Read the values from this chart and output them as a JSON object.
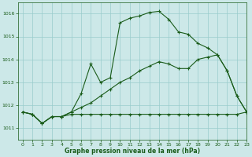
{
  "background_color": "#cce8e8",
  "grid_color": "#99cccc",
  "line_color": "#1a5c1a",
  "title": "Graphe pression niveau de la mer (hPa)",
  "xlim": [
    -0.5,
    23
  ],
  "ylim": [
    1010.5,
    1016.5
  ],
  "yticks": [
    1011,
    1012,
    1013,
    1014,
    1015,
    1016
  ],
  "xticks": [
    0,
    1,
    2,
    3,
    4,
    5,
    6,
    7,
    8,
    9,
    10,
    11,
    12,
    13,
    14,
    15,
    16,
    17,
    18,
    19,
    20,
    21,
    22,
    23
  ],
  "line1_x": [
    0,
    1,
    2,
    3,
    4,
    5,
    6,
    7,
    8,
    9,
    10,
    11,
    12,
    13,
    14,
    15,
    16,
    17,
    18,
    19,
    20,
    21,
    22,
    23
  ],
  "line1_y": [
    1011.7,
    1011.6,
    1011.2,
    1011.5,
    1011.5,
    1011.7,
    1012.5,
    1013.8,
    1013.0,
    1013.2,
    1015.6,
    1015.8,
    1015.9,
    1016.05,
    1016.1,
    1015.75,
    1015.2,
    1015.1,
    1014.7,
    1014.5,
    1014.2,
    1013.5,
    1012.4,
    1011.7
  ],
  "line2_x": [
    0,
    1,
    2,
    3,
    4,
    5,
    6,
    7,
    8,
    9,
    10,
    11,
    12,
    13,
    14,
    15,
    16,
    17,
    18,
    19,
    20,
    21,
    22,
    23
  ],
  "line2_y": [
    1011.7,
    1011.6,
    1011.2,
    1011.5,
    1011.5,
    1011.6,
    1011.6,
    1011.6,
    1011.6,
    1011.6,
    1011.6,
    1011.6,
    1011.6,
    1011.6,
    1011.6,
    1011.6,
    1011.6,
    1011.6,
    1011.6,
    1011.6,
    1011.6,
    1011.6,
    1011.6,
    1011.7
  ],
  "line3_x": [
    0,
    1,
    2,
    3,
    4,
    5,
    6,
    7,
    8,
    9,
    10,
    11,
    12,
    13,
    14,
    15,
    16,
    17,
    18,
    19,
    20,
    21,
    22,
    23
  ],
  "line3_y": [
    1011.7,
    1011.6,
    1011.2,
    1011.5,
    1011.5,
    1011.7,
    1011.9,
    1012.1,
    1012.4,
    1012.7,
    1013.0,
    1013.2,
    1013.5,
    1013.7,
    1013.9,
    1013.8,
    1013.6,
    1013.6,
    1014.0,
    1014.1,
    1014.2,
    1013.5,
    1012.4,
    1011.7
  ]
}
